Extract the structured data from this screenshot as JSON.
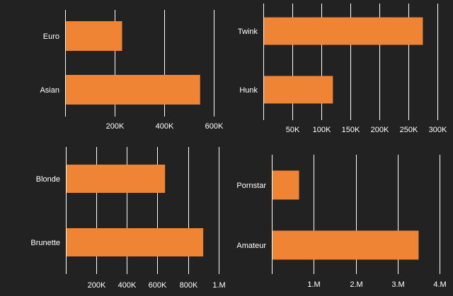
{
  "theme": {
    "background": "#222222",
    "bar_color": "#ef8435",
    "grid_color": "#ffffff",
    "text_color": "#ffffff"
  },
  "chart_data": [
    {
      "type": "bar",
      "orientation": "horizontal",
      "categories": [
        "Euro",
        "Asian"
      ],
      "values": [
        230000,
        545000
      ],
      "xlim": [
        0,
        620000
      ],
      "ticks": [
        {
          "value": 0,
          "label": ""
        },
        {
          "value": 200000,
          "label": "200K"
        },
        {
          "value": 400000,
          "label": "400K"
        },
        {
          "value": 600000,
          "label": "600K"
        }
      ]
    },
    {
      "type": "bar",
      "orientation": "horizontal",
      "categories": [
        "Twink",
        "Hunk"
      ],
      "values": [
        275000,
        120000
      ],
      "xlim": [
        0,
        305000
      ],
      "ticks": [
        {
          "value": 0,
          "label": ""
        },
        {
          "value": 50000,
          "label": "50K"
        },
        {
          "value": 100000,
          "label": "100K"
        },
        {
          "value": 150000,
          "label": "150K"
        },
        {
          "value": 200000,
          "label": "200K"
        },
        {
          "value": 250000,
          "label": "250K"
        },
        {
          "value": 300000,
          "label": "300K"
        }
      ]
    },
    {
      "type": "bar",
      "orientation": "horizontal",
      "categories": [
        "Blonde",
        "Brunette"
      ],
      "values": [
        650000,
        900000
      ],
      "xlim": [
        0,
        1020000
      ],
      "ticks": [
        {
          "value": 0,
          "label": ""
        },
        {
          "value": 200000,
          "label": "200K"
        },
        {
          "value": 400000,
          "label": "400K"
        },
        {
          "value": 600000,
          "label": "600K"
        },
        {
          "value": 800000,
          "label": "800K"
        },
        {
          "value": 1000000,
          "label": "1.M"
        }
      ]
    },
    {
      "type": "bar",
      "orientation": "horizontal",
      "categories": [
        "Pornstar",
        "Amateur"
      ],
      "values": [
        650000,
        3500000
      ],
      "xlim": [
        0,
        4050000
      ],
      "ticks": [
        {
          "value": 0,
          "label": ""
        },
        {
          "value": 1000000,
          "label": "1.M"
        },
        {
          "value": 2000000,
          "label": "2.M"
        },
        {
          "value": 3000000,
          "label": "3.M"
        },
        {
          "value": 4000000,
          "label": "4.M"
        }
      ]
    }
  ]
}
